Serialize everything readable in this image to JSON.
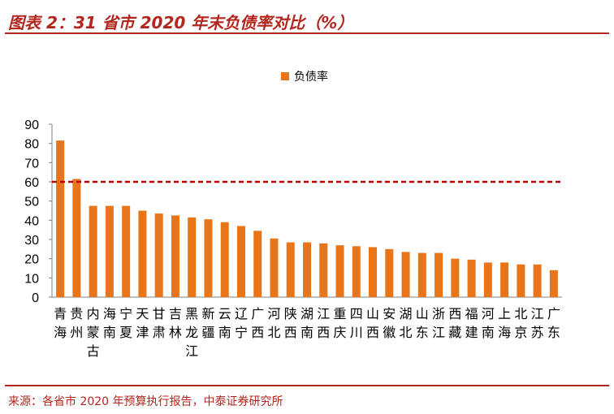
{
  "title": "图表 2：31 省市 2020 年末负债率对比（%）",
  "source": "来源：各省市 2020 年预算执行报告，中泰证券研究所",
  "colors": {
    "bar": "#e8751a",
    "reference_line": "#c00000",
    "accent": "#b3261e"
  },
  "chart_data": {
    "type": "bar",
    "categories": [
      "青海",
      "贵州",
      "内蒙古",
      "海南",
      "宁夏",
      "天津",
      "甘肃",
      "吉林",
      "黑龙江",
      "新疆",
      "云南",
      "辽宁",
      "广西",
      "河北",
      "陕西",
      "湖南",
      "江西",
      "重庆",
      "四川",
      "山西",
      "安徽",
      "湖北",
      "山东",
      "浙江",
      "西藏",
      "福建",
      "河南",
      "上海",
      "北京",
      "江苏",
      "广东"
    ],
    "series": [
      {
        "name": "负债率",
        "values": [
          81.5,
          61.5,
          47.5,
          47.5,
          47.5,
          45,
          43.5,
          42.5,
          41.5,
          40.5,
          39,
          37,
          34.5,
          30.5,
          28.5,
          28.5,
          28,
          27,
          26.5,
          26,
          25,
          23.5,
          23,
          23,
          20,
          19.5,
          18,
          18,
          17,
          17,
          14
        ]
      }
    ],
    "reference_line": 60,
    "ylim": [
      0,
      90
    ],
    "yticks": [
      0,
      10,
      20,
      30,
      40,
      50,
      60,
      70,
      80,
      90
    ],
    "legend": "top-center"
  }
}
